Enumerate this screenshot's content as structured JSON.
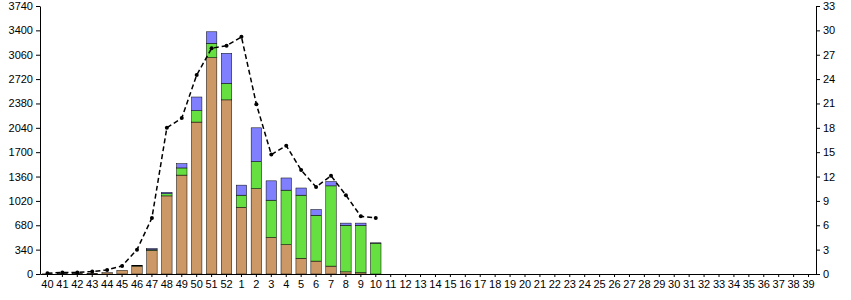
{
  "chart_data": {
    "type": "bar",
    "stacked": true,
    "grid": false,
    "categories": [
      "40",
      "41",
      "42",
      "43",
      "44",
      "45",
      "46",
      "47",
      "48",
      "49",
      "50",
      "51",
      "52",
      "1",
      "2",
      "3",
      "4",
      "5",
      "6",
      "7",
      "8",
      "9",
      "10",
      "11",
      "12",
      "13",
      "14",
      "15",
      "16",
      "17",
      "18",
      "19",
      "20",
      "21",
      "22",
      "23",
      "24",
      "25",
      "26",
      "27",
      "28",
      "29",
      "30",
      "31",
      "32",
      "33",
      "34",
      "35",
      "36",
      "37",
      "38",
      "39"
    ],
    "ylim": [
      0,
      3740
    ],
    "yticks": [
      0,
      340,
      680,
      1020,
      1360,
      1700,
      2040,
      2380,
      2720,
      3060,
      3400,
      3740
    ],
    "y2lim": [
      0,
      33
    ],
    "y2ticks": [
      0,
      3,
      6,
      9,
      12,
      15,
      18,
      21,
      24,
      27,
      30,
      33
    ],
    "series": [
      {
        "type": "bar",
        "color": "#cc9966",
        "values": [
          2,
          5,
          6,
          10,
          18,
          50,
          110,
          330,
          1090,
          1380,
          2120,
          3020,
          2430,
          930,
          1190,
          510,
          410,
          220,
          180,
          110,
          30,
          20,
          0,
          null,
          null,
          null,
          null,
          null,
          null,
          null,
          null,
          null,
          null,
          null,
          null,
          null,
          null,
          null,
          null,
          null,
          null,
          null,
          null,
          null,
          null,
          null,
          null,
          null,
          null,
          null,
          null,
          null
        ]
      },
      {
        "type": "bar",
        "color": "#66e040",
        "values": [
          0,
          0,
          0,
          0,
          0,
          0,
          5,
          10,
          30,
          100,
          160,
          200,
          230,
          170,
          380,
          520,
          760,
          880,
          640,
          1120,
          650,
          660,
          430,
          null,
          null,
          null,
          null,
          null,
          null,
          null,
          null,
          null,
          null,
          null,
          null,
          null,
          null,
          null,
          null,
          null,
          null,
          null,
          null,
          null,
          null,
          null,
          null,
          null,
          null,
          null,
          null,
          null
        ]
      },
      {
        "type": "bar",
        "color": "#8080ff",
        "values": [
          0,
          0,
          0,
          0,
          0,
          0,
          5,
          15,
          20,
          60,
          190,
          160,
          420,
          140,
          470,
          270,
          170,
          100,
          80,
          60,
          30,
          30,
          5,
          null,
          null,
          null,
          null,
          null,
          null,
          null,
          null,
          null,
          null,
          null,
          null,
          null,
          null,
          null,
          null,
          null,
          null,
          null,
          null,
          null,
          null,
          null,
          null,
          null,
          null,
          null,
          null,
          null
        ]
      },
      {
        "type": "line",
        "axis": "y2",
        "color": "#000000",
        "line_style": "dashed",
        "marker": "circle",
        "values": [
          0.1,
          0.2,
          0.2,
          0.3,
          0.5,
          1.0,
          3.0,
          6.9,
          18.0,
          19.2,
          24.5,
          27.8,
          28.1,
          29.2,
          20.9,
          14.7,
          15.8,
          12.8,
          10.7,
          12.1,
          9.7,
          7.1,
          6.9,
          null,
          null,
          null,
          null,
          null,
          null,
          null,
          null,
          null,
          null,
          null,
          null,
          null,
          null,
          null,
          null,
          null,
          null,
          null,
          null,
          null,
          null,
          null,
          null,
          null,
          null,
          null,
          null,
          null
        ]
      }
    ]
  }
}
